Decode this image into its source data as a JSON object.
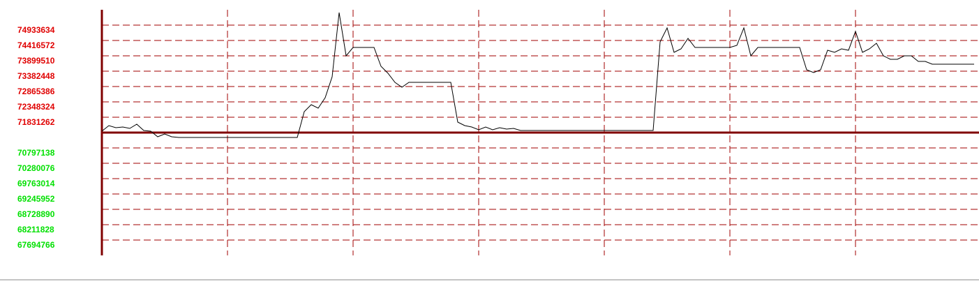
{
  "chart_data": {
    "type": "line",
    "values": [
      71361206,
      71549230,
      71478721,
      71502224,
      71455218,
      71596236,
      71384709,
      71361206,
      71173182,
      71267188,
      71173182,
      71149679,
      71149679,
      71149679,
      71149679,
      71149679,
      71149679,
      71149679,
      71149679,
      71149679,
      71149679,
      71149679,
      71149679,
      71149679,
      71149679,
      71149679,
      71149679,
      71149679,
      71149679,
      72019290,
      72254320,
      72136805,
      72489350,
      73194440,
      75356716,
      73899530,
      74181566,
      74181566,
      74181566,
      74181566,
      73546985,
      73311955,
      73006416,
      72841895,
      73006416,
      73006416,
      73006416,
      73006416,
      73006416,
      73006416,
      73006416,
      71666745,
      71549230,
      71502224,
      71408212,
      71502224,
      71408212,
      71478721,
      71431715,
      71455218,
      71384709,
      71384709,
      71384709,
      71384709,
      71384709,
      71384709,
      71384709,
      71384709,
      71384709,
      71384709,
      71384709,
      71384709,
      71384709,
      71384709,
      71384709,
      71384709,
      71384709,
      71384709,
      71384709,
      71384709,
      74369590,
      74839700,
      74017045,
      74134860,
      74487105,
      74181566,
      74181566,
      74181566,
      74181566,
      74181566,
      74181566,
      74252075,
      74839700,
      73899530,
      74181566,
      74181566,
      74181566,
      74181566,
      74181566,
      74181566,
      74181566,
      73429470,
      73335458,
      73429470,
      74087854,
      74017045,
      74134860,
      74087854,
      74722185,
      74017045,
      74134860,
      74322581,
      73899530,
      73782015,
      73782015,
      73899530,
      73899530,
      73711506,
      73711506,
      73617494,
      73617494,
      73617494,
      73617494,
      73617494,
      73617494,
      73617494
    ],
    "color": "#000000",
    "baseline": 71314200,
    "baseline_color": "#800000",
    "ylim": [
      67177704,
      75450696
    ],
    "yticks": [
      74933634,
      74416572,
      73899510,
      73382448,
      72865386,
      72348324,
      71831262,
      70797138,
      70280076,
      69763014,
      69245952,
      68728890,
      68211828,
      67694766
    ],
    "tick_colors": {
      "above": "#e00000",
      "below": "#00e000"
    },
    "grid": true
  }
}
